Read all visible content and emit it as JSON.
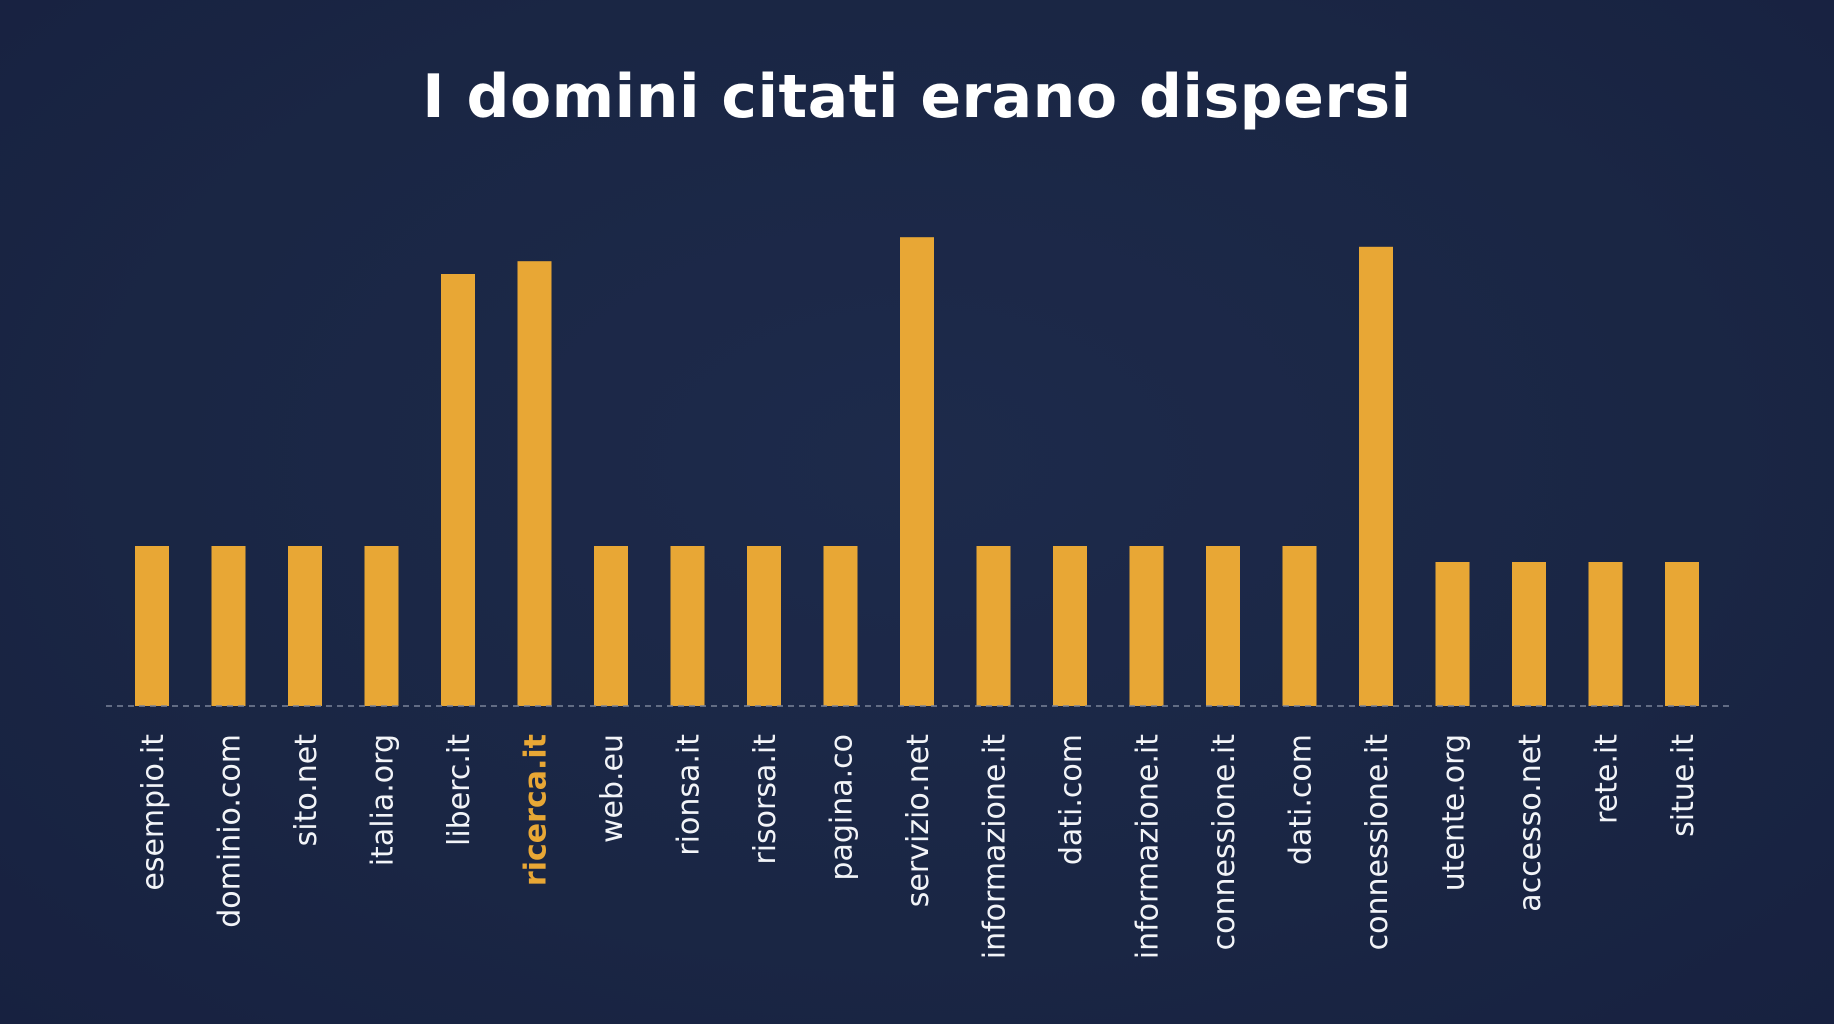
{
  "title": "I domini citati erano dispersi",
  "colors": {
    "background": "#1b2745",
    "bar": "#e8a735",
    "label": "#f2f4f8",
    "highlight_label": "#e8a735",
    "baseline": "#7b8499"
  },
  "chart_data": {
    "type": "bar",
    "title": "I domini citati erano dispersi",
    "xlabel": "",
    "ylabel": "",
    "categories": [
      "esempio.it",
      "dominio.com",
      "sito.net",
      "italia.org",
      "liberc.it",
      "ricerca.it",
      "web.eu",
      "rionsa.it",
      "risorsa.it",
      "pagina.co",
      "servizio.net",
      "informazione.it",
      "dati.com",
      "informazione.it",
      "connessione.it",
      "dati.com",
      "connessione.it",
      "utente.org",
      "accesso.net",
      "rete.it",
      "situe.it"
    ],
    "values": [
      1,
      1,
      1,
      1,
      2.7,
      2.78,
      1,
      1,
      1,
      1,
      2.93,
      1,
      1,
      1,
      1,
      1,
      2.87,
      0.9,
      0.9,
      0.9,
      0.9
    ],
    "highlighted_category": "ricerca.it",
    "ylim": [
      0,
      3
    ],
    "y_axis_visible": false,
    "grid": false,
    "baseline": "dashed",
    "label_orientation": "vertical"
  }
}
